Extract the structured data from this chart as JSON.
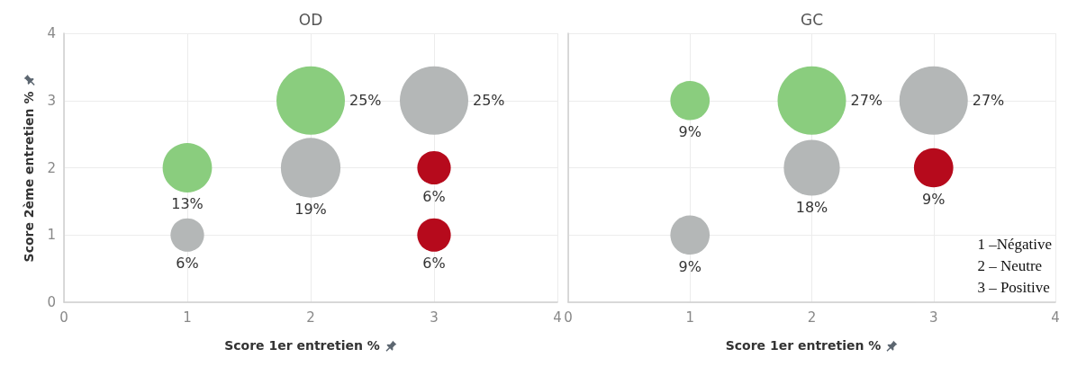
{
  "chart_data": [
    {
      "type": "bubble",
      "title": "OD",
      "xlabel": "Score 1er entretien %",
      "ylabel": "Score 2ème entretien %",
      "xlim": [
        0,
        4
      ],
      "ylim": [
        0,
        4
      ],
      "xticks": [
        0,
        1,
        2,
        3,
        4
      ],
      "yticks": [
        0,
        1,
        2,
        3,
        4
      ],
      "grid": true,
      "annotations": [
        {
          "text": "13%",
          "x": 1,
          "y": 2
        },
        {
          "text": "25%",
          "x": 2,
          "y": 3
        },
        {
          "text": "6%",
          "x": 1,
          "y": 1
        },
        {
          "text": "19%",
          "x": 2,
          "y": 2
        },
        {
          "text": "25%",
          "x": 3,
          "y": 3
        },
        {
          "text": "6%",
          "x": 3,
          "y": 2
        },
        {
          "text": "6%",
          "x": 3,
          "y": 1
        }
      ],
      "series": [
        {
          "color": "#8acd7e",
          "x": [
            1,
            2
          ],
          "values": [
            2,
            3
          ],
          "sizes": [
            0.52,
            1
          ]
        },
        {
          "color": "#b4b7b7",
          "x": [
            1,
            2,
            3
          ],
          "values": [
            1,
            2,
            3
          ],
          "sizes": [
            0.24,
            0.76,
            1
          ]
        },
        {
          "color": "#b60a1c",
          "x": [
            3,
            3
          ],
          "values": [
            2,
            1
          ],
          "sizes": [
            0.24,
            0.24
          ]
        }
      ]
    },
    {
      "type": "bubble",
      "title": "GC",
      "xlabel": "Score 1er entretien %",
      "xlim": [
        0,
        4
      ],
      "ylim": [
        0,
        4
      ],
      "xticks": [
        0,
        1,
        2,
        3,
        4
      ],
      "yticks": [
        0,
        1,
        2,
        3,
        4
      ],
      "grid": true,
      "tick_labels": "x",
      "annotations": [
        "1 –Négative",
        "2 – Neutre",
        "3 – Positive",
        {
          "text": "9%",
          "x": 1,
          "y": 3
        },
        {
          "text": "27%",
          "x": 2,
          "y": 3
        },
        {
          "text": "9%",
          "x": 1,
          "y": 1
        },
        {
          "text": "18%",
          "x": 2,
          "y": 2
        },
        {
          "text": "27%",
          "x": 3,
          "y": 3
        },
        {
          "text": "9%",
          "x": 3,
          "y": 2
        }
      ],
      "series": [
        {
          "color": "#8acd7e",
          "x": [
            1,
            2
          ],
          "values": [
            3,
            3
          ],
          "sizes": [
            0.33,
            1
          ]
        },
        {
          "color": "#b4b7b7",
          "x": [
            1,
            2,
            3
          ],
          "values": [
            1,
            2,
            3
          ],
          "sizes": [
            0.33,
            0.67,
            1
          ]
        },
        {
          "color": "#b60a1c",
          "x": [
            3
          ],
          "values": [
            2
          ],
          "sizes": [
            0.33
          ]
        }
      ]
    }
  ]
}
